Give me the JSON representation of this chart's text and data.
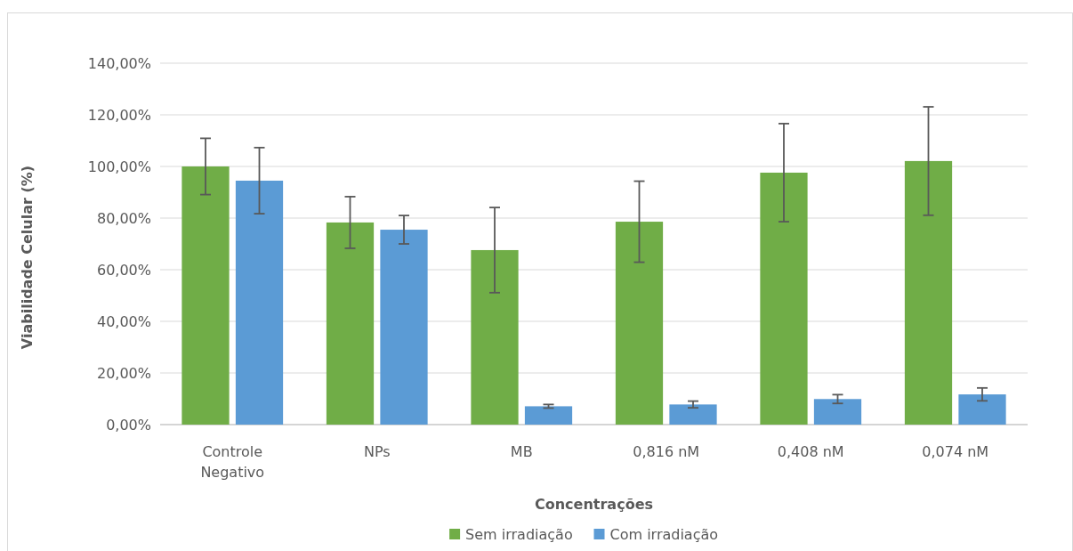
{
  "chart_data": {
    "type": "bar",
    "xlabel": "Concentrações",
    "ylabel": "Viabilidade Celular (%)",
    "categories": [
      "Controle Negativo",
      "NPs",
      "MB",
      "0,816 nM",
      "0,408 nM",
      "0,074 nM"
    ],
    "series": [
      {
        "name": "Sem irradiação",
        "color": "#70ad47",
        "values": [
          100,
          78.3,
          67.6,
          78.6,
          97.6,
          102.1
        ],
        "errors": [
          10.9,
          10,
          16.5,
          15.7,
          19,
          21
        ]
      },
      {
        "name": "Com irradiação",
        "color": "#5b9bd5",
        "values": [
          94.5,
          75.5,
          7.1,
          7.8,
          9.9,
          11.7
        ],
        "errors": [
          12.8,
          5.5,
          0.7,
          1.3,
          1.7,
          2.5
        ]
      }
    ],
    "ylim": [
      0,
      140
    ],
    "yticks": [
      {
        "value": 0,
        "label": "0,00%"
      },
      {
        "value": 20,
        "label": "20,00%"
      },
      {
        "value": 40,
        "label": "40,00%"
      },
      {
        "value": 60,
        "label": "60,00%"
      },
      {
        "value": 80,
        "label": "80,00%"
      },
      {
        "value": 100,
        "label": "100,00%"
      },
      {
        "value": 120,
        "label": "120,00%"
      },
      {
        "value": 140,
        "label": "140,00%"
      }
    ],
    "grid": "y",
    "legend": "bottom"
  }
}
